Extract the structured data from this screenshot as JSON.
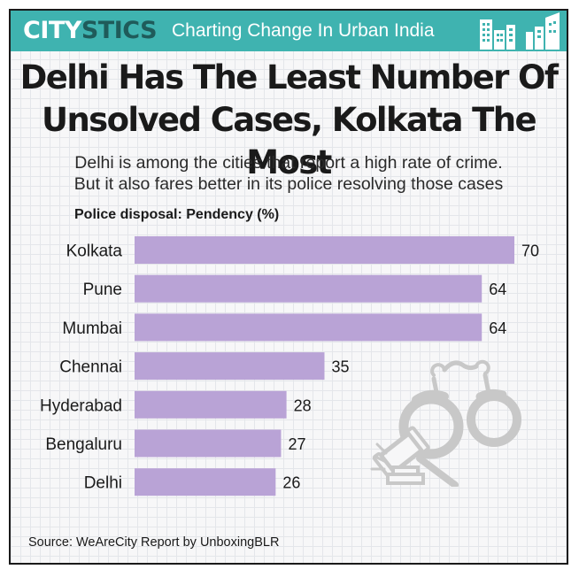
{
  "header": {
    "brand_part1": "CITY",
    "brand_part2": "STICS",
    "tagline": "Charting Change In Urban India",
    "brand_color": "#3fb3b0"
  },
  "title_line1": "Delhi Has The Least Number Of",
  "title_line2": "Unsolved Cases, Kolkata The Most",
  "subtitle_line1": "Delhi is among the cities that report a high rate of crime.",
  "subtitle_line2": "But it also fares better in its police resolving those cases",
  "source": "Source: WeAreCity Report by UnboxingBLR",
  "icons": [
    "city-skyline-icon",
    "handcuffs-icon",
    "gavel-icon"
  ],
  "chart_data": {
    "type": "bar",
    "orientation": "horizontal",
    "ylabel": "Police disposal: Pendency (%)",
    "categories": [
      "Kolkata",
      "Pune",
      "Mumbai",
      "Chennai",
      "Hyderabad",
      "Bengaluru",
      "Delhi"
    ],
    "values": [
      70,
      64,
      64,
      35,
      28,
      27,
      26
    ],
    "bar_color": "#b9a3d6",
    "xlim": [
      0,
      70
    ],
    "grid": false,
    "legend": "none"
  }
}
